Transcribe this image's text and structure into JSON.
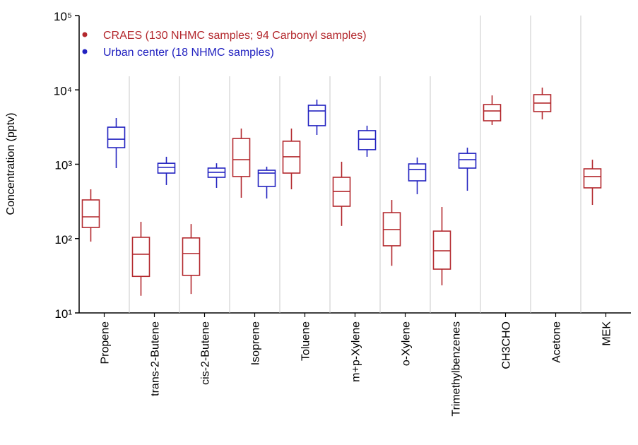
{
  "chart_data": {
    "type": "box",
    "y_label": "Concentration (pptv)",
    "log_scale": true,
    "categories": [
      "Propene",
      "trans-2-Butene",
      "cis-2-Butene",
      "Isoprene",
      "Toluene",
      "m+p-Xylene",
      "o-Xylene",
      "Trimethylbenzenes",
      "CH3CHO",
      "Acetone",
      "MEK"
    ],
    "ylim": [
      10,
      100000
    ],
    "yticks": [
      {
        "value": 10,
        "label": "10¹"
      },
      {
        "value": 100,
        "label": "10²"
      },
      {
        "value": 1000,
        "label": "10³"
      },
      {
        "value": 10000,
        "label": "10⁴"
      },
      {
        "value": 100000,
        "label": "10⁵"
      }
    ],
    "series": [
      {
        "name": "CRAES (130 NHMC samples; 94 Carbonyl samples)",
        "color": "#b3282d",
        "low": [
          91,
          17,
          18,
          354,
          460,
          148,
          43,
          23.5,
          3370,
          4010,
          284
        ],
        "q1": [
          141,
          31,
          32,
          683,
          760,
          272,
          80,
          38.8,
          3840,
          5100,
          481
        ],
        "median": [
          196,
          61.5,
          63,
          1150,
          1260,
          430,
          132,
          68.5,
          5210,
          6640,
          683
        ],
        "q3": [
          331,
          104,
          102,
          2220,
          2040,
          667,
          223,
          126,
          6350,
          8630,
          867
        ],
        "high": [
          460,
          168,
          157,
          3020,
          3020,
          1080,
          331,
          266,
          8430,
          10740,
          1150
        ]
      },
      {
        "name": "Urban center (18 NHMC samples)",
        "color": "#2222c0",
        "low": [
          887,
          525,
          481,
          346,
          2480,
          1260,
          395,
          440,
          null,
          null,
          null
        ],
        "q1": [
          1670,
          760,
          667,
          502,
          3300,
          1570,
          598,
          887,
          null,
          null,
          null
        ],
        "median": [
          2170,
          906,
          778,
          760,
          5210,
          2170,
          849,
          1150,
          null,
          null,
          null
        ],
        "q3": [
          3150,
          1030,
          887,
          830,
          6210,
          2830,
          1010,
          1400,
          null,
          null,
          null
        ],
        "high": [
          4190,
          1260,
          1030,
          927,
          7400,
          3300,
          1230,
          1670,
          null,
          null,
          null
        ]
      }
    ]
  }
}
